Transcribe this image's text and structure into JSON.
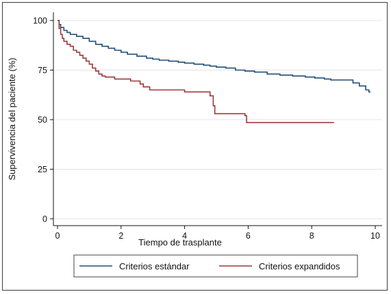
{
  "chart_data": {
    "type": "line",
    "title": "",
    "xlabel": "Tiempo de trasplante",
    "ylabel": "Supervivencia del paciente (%)",
    "xlim": [
      0,
      10
    ],
    "ylim": [
      0,
      100
    ],
    "xticks": [
      0,
      2,
      4,
      6,
      8,
      10
    ],
    "yticks": [
      0,
      25,
      50,
      75,
      100
    ],
    "x_tick_labels": [
      "0",
      "2",
      "4",
      "6",
      "8",
      "10"
    ],
    "y_tick_labels": [
      "0",
      "25",
      "50",
      "75",
      "100"
    ],
    "grid": "horizontal",
    "legend_position": "bottom",
    "colors": {
      "series_1": "#1f4e79",
      "series_2": "#a0373a"
    },
    "series": [
      {
        "name": "Criterios estándar",
        "step": true,
        "points": [
          [
            0,
            100
          ],
          [
            0.05,
            98
          ],
          [
            0.1,
            96.5
          ],
          [
            0.2,
            95
          ],
          [
            0.3,
            94
          ],
          [
            0.4,
            93
          ],
          [
            0.6,
            92
          ],
          [
            0.8,
            91
          ],
          [
            1.0,
            89.5
          ],
          [
            1.2,
            88
          ],
          [
            1.4,
            87
          ],
          [
            1.6,
            86
          ],
          [
            1.8,
            85
          ],
          [
            2.0,
            84
          ],
          [
            2.2,
            83
          ],
          [
            2.5,
            82
          ],
          [
            2.8,
            81
          ],
          [
            3.0,
            80.5
          ],
          [
            3.2,
            80
          ],
          [
            3.5,
            79.5
          ],
          [
            3.8,
            79
          ],
          [
            4.0,
            78.5
          ],
          [
            4.3,
            78
          ],
          [
            4.6,
            77.5
          ],
          [
            4.8,
            77
          ],
          [
            5.0,
            76.5
          ],
          [
            5.3,
            76
          ],
          [
            5.6,
            75
          ],
          [
            5.9,
            74.5
          ],
          [
            6.2,
            74
          ],
          [
            6.6,
            73
          ],
          [
            7.0,
            72.5
          ],
          [
            7.4,
            72
          ],
          [
            7.8,
            71.5
          ],
          [
            8.1,
            71
          ],
          [
            8.4,
            70.5
          ],
          [
            8.6,
            70
          ],
          [
            9.1,
            70
          ],
          [
            9.3,
            68.5
          ],
          [
            9.5,
            67
          ],
          [
            9.7,
            65
          ],
          [
            9.8,
            64
          ],
          [
            9.85,
            64
          ]
        ]
      },
      {
        "name": "Criterios expandidos",
        "step": true,
        "points": [
          [
            0,
            100
          ],
          [
            0.05,
            96
          ],
          [
            0.1,
            93
          ],
          [
            0.15,
            91
          ],
          [
            0.2,
            89.5
          ],
          [
            0.3,
            88
          ],
          [
            0.4,
            87
          ],
          [
            0.5,
            85
          ],
          [
            0.6,
            84
          ],
          [
            0.7,
            82.5
          ],
          [
            0.8,
            81
          ],
          [
            0.9,
            79.5
          ],
          [
            1.0,
            78
          ],
          [
            1.1,
            76
          ],
          [
            1.2,
            74.5
          ],
          [
            1.3,
            73
          ],
          [
            1.4,
            72
          ],
          [
            1.5,
            71.5
          ],
          [
            1.8,
            70.5
          ],
          [
            2.3,
            69.5
          ],
          [
            2.6,
            68
          ],
          [
            2.7,
            66.5
          ],
          [
            2.9,
            65
          ],
          [
            4.0,
            64
          ],
          [
            4.8,
            62
          ],
          [
            4.9,
            57
          ],
          [
            4.95,
            53
          ],
          [
            5.9,
            52
          ],
          [
            5.95,
            48.5
          ],
          [
            8.7,
            48.5
          ]
        ]
      }
    ]
  }
}
